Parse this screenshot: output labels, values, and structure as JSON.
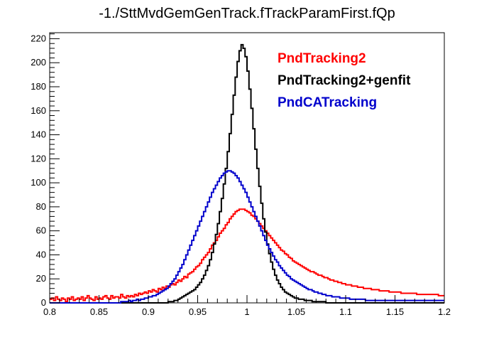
{
  "chart_data": {
    "type": "line",
    "title": "-1./SttMvdGemGenTrack.fTrackParamFirst.fQp",
    "xlabel": "",
    "ylabel": "",
    "xlim": [
      0.8,
      1.2
    ],
    "ylim": [
      0,
      225
    ],
    "x_ticks": [
      0.8,
      0.85,
      0.9,
      0.95,
      1,
      1.05,
      1.1,
      1.15,
      1.2
    ],
    "y_ticks": [
      0,
      20,
      40,
      60,
      80,
      100,
      120,
      140,
      160,
      180,
      200,
      220
    ],
    "x_tick_labels": [
      "0.8",
      "0.85",
      "0.9",
      "0.95",
      "1",
      "1.05",
      "1.1",
      "1.15",
      "1.2"
    ],
    "y_tick_labels": [
      "0",
      "20",
      "40",
      "60",
      "80",
      "100",
      "120",
      "140",
      "160",
      "180",
      "200",
      "220"
    ],
    "grid": false,
    "legend_position": "top-right",
    "bin_width": 0.002,
    "x_start": 0.8,
    "series": [
      {
        "name": "PndTracking2",
        "color": "#ff0000",
        "values": [
          3,
          4,
          2,
          5,
          3,
          2,
          4,
          3,
          1,
          4,
          3,
          5,
          2,
          3,
          4,
          3,
          5,
          2,
          4,
          6,
          4,
          3,
          2,
          5,
          3,
          4,
          3,
          5,
          6,
          4,
          3,
          6,
          4,
          5,
          5,
          4,
          7,
          5,
          4,
          6,
          5,
          6,
          5,
          7,
          6,
          8,
          7,
          8,
          9,
          8,
          10,
          9,
          11,
          10,
          9,
          12,
          11,
          13,
          12,
          14,
          13,
          15,
          16,
          15,
          17,
          19,
          18,
          20,
          22,
          21,
          24,
          25,
          26,
          28,
          30,
          31,
          33,
          36,
          38,
          40,
          42,
          45,
          48,
          50,
          52,
          55,
          58,
          60,
          62,
          65,
          67,
          70,
          72,
          74,
          76,
          77,
          78,
          78,
          78,
          77,
          76,
          75,
          73,
          72,
          70,
          68,
          66,
          64,
          62,
          60,
          58,
          56,
          54,
          52,
          50,
          48,
          46,
          44,
          43,
          41,
          40,
          38,
          37,
          35,
          34,
          33,
          32,
          31,
          30,
          29,
          28,
          27,
          26,
          26,
          25,
          24,
          23,
          23,
          22,
          21,
          21,
          20,
          19,
          19,
          18,
          18,
          17,
          17,
          16,
          16,
          15,
          15,
          15,
          14,
          14,
          14,
          13,
          13,
          13,
          12,
          12,
          12,
          12,
          11,
          11,
          11,
          11,
          10,
          10,
          10,
          10,
          10,
          9,
          9,
          9,
          9,
          9,
          9,
          8,
          8,
          8,
          8,
          8,
          8,
          8,
          8,
          7,
          7,
          7,
          7,
          7,
          7,
          7,
          7,
          7,
          7,
          7,
          6,
          6,
          6
        ]
      },
      {
        "name": "PndTracking2+genfit",
        "color": "#000000",
        "values": [
          0,
          0,
          0,
          0,
          0,
          0,
          0,
          0,
          0,
          0,
          0,
          0,
          0,
          0,
          0,
          0,
          0,
          0,
          0,
          0,
          0,
          0,
          0,
          0,
          0,
          0,
          0,
          0,
          0,
          0,
          0,
          0,
          0,
          0,
          0,
          0,
          0,
          0,
          0,
          0,
          0,
          0,
          0,
          0,
          0,
          0,
          0,
          0,
          0,
          0,
          0,
          0,
          0,
          0,
          0,
          0,
          0,
          0,
          0,
          0,
          1,
          1,
          1,
          2,
          2,
          3,
          4,
          5,
          6,
          7,
          8,
          9,
          10,
          11,
          13,
          15,
          17,
          20,
          23,
          27,
          31,
          36,
          42,
          49,
          57,
          66,
          76,
          87,
          99,
          112,
          126,
          141,
          157,
          173,
          188,
          201,
          210,
          215,
          212,
          205,
          193,
          178,
          162,
          145,
          128,
          112,
          97,
          83,
          70,
          59,
          49,
          41,
          34,
          28,
          23,
          19,
          16,
          13,
          11,
          9,
          8,
          7,
          6,
          5,
          4,
          4,
          3,
          3,
          3,
          2,
          2,
          2,
          2,
          1,
          1,
          1,
          1,
          1,
          1,
          1,
          0,
          0,
          0,
          0,
          0,
          0,
          0,
          0,
          0,
          0,
          0,
          0,
          0,
          0,
          0,
          0,
          0,
          0,
          0,
          0,
          0,
          0,
          0,
          0,
          0,
          0,
          0,
          0,
          0,
          0,
          0,
          0,
          0,
          0,
          0,
          0,
          0,
          0,
          0,
          0,
          0,
          0,
          0,
          0,
          0,
          0,
          0,
          0,
          0,
          0,
          0,
          0,
          0,
          0,
          0,
          0,
          0,
          0,
          0,
          0
        ]
      },
      {
        "name": "PndCATracking",
        "color": "#0000cc",
        "values": [
          0,
          0,
          0,
          0,
          0,
          0,
          0,
          0,
          0,
          0,
          0,
          0,
          0,
          0,
          0,
          0,
          0,
          0,
          0,
          0,
          0,
          0,
          0,
          0,
          0,
          0,
          0,
          0,
          0,
          0,
          0,
          0,
          0,
          0,
          0,
          0,
          1,
          1,
          1,
          1,
          2,
          1,
          2,
          2,
          3,
          2,
          3,
          3,
          4,
          4,
          5,
          5,
          6,
          6,
          7,
          8,
          9,
          10,
          11,
          12,
          14,
          16,
          18,
          20,
          23,
          26,
          29,
          32,
          36,
          40,
          44,
          48,
          52,
          56,
          60,
          64,
          68,
          72,
          76,
          80,
          84,
          88,
          92,
          95,
          98,
          101,
          104,
          106,
          108,
          109,
          110,
          110,
          109,
          108,
          106,
          104,
          101,
          98,
          95,
          92,
          88,
          84,
          80,
          76,
          72,
          68,
          64,
          60,
          56,
          52,
          48,
          45,
          42,
          39,
          36,
          34,
          31,
          29,
          27,
          25,
          23,
          22,
          20,
          19,
          18,
          17,
          16,
          15,
          14,
          13,
          12,
          11,
          11,
          10,
          9,
          9,
          8,
          8,
          7,
          7,
          6,
          6,
          6,
          5,
          5,
          5,
          5,
          4,
          4,
          4,
          4,
          4,
          3,
          3,
          3,
          3,
          3,
          3,
          3,
          3,
          2,
          2,
          2,
          2,
          2,
          2,
          2,
          2,
          2,
          2,
          2,
          2,
          2,
          2,
          2,
          2,
          2,
          2,
          2,
          2,
          2,
          2,
          2,
          2,
          2,
          2,
          2,
          2,
          2,
          2,
          2,
          2,
          2,
          2,
          2,
          2,
          2,
          2,
          2,
          2
        ]
      }
    ]
  }
}
